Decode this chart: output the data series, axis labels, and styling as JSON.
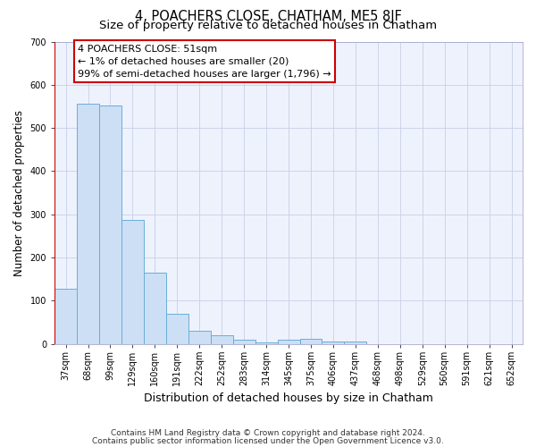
{
  "title": "4, POACHERS CLOSE, CHATHAM, ME5 8JF",
  "subtitle": "Size of property relative to detached houses in Chatham",
  "xlabel": "Distribution of detached houses by size in Chatham",
  "ylabel": "Number of detached properties",
  "categories": [
    "37sqm",
    "68sqm",
    "99sqm",
    "129sqm",
    "160sqm",
    "191sqm",
    "222sqm",
    "252sqm",
    "283sqm",
    "314sqm",
    "345sqm",
    "375sqm",
    "406sqm",
    "437sqm",
    "468sqm",
    "498sqm",
    "529sqm",
    "560sqm",
    "591sqm",
    "621sqm",
    "652sqm"
  ],
  "values": [
    128,
    557,
    553,
    287,
    165,
    70,
    30,
    20,
    10,
    4,
    9,
    11,
    5,
    5,
    0,
    0,
    0,
    0,
    0,
    0,
    0
  ],
  "bar_color": "#ccdff5",
  "bar_edge_color": "#6aaed6",
  "vline_color": "#cc0000",
  "vline_x": -0.5,
  "annotation_text": "4 POACHERS CLOSE: 51sqm\n← 1% of detached houses are smaller (20)\n99% of semi-detached houses are larger (1,796) →",
  "annotation_box_color": "#cc0000",
  "footnote_line1": "Contains HM Land Registry data © Crown copyright and database right 2024.",
  "footnote_line2": "Contains public sector information licensed under the Open Government Licence v3.0.",
  "ylim": [
    0,
    700
  ],
  "yticks": [
    0,
    100,
    200,
    300,
    400,
    500,
    600,
    700
  ],
  "plot_bg_color": "#eef2fc",
  "grid_color": "#c8cfe8",
  "title_fontsize": 10.5,
  "subtitle_fontsize": 9.5,
  "xlabel_fontsize": 9,
  "ylabel_fontsize": 8.5,
  "tick_fontsize": 7,
  "annotation_fontsize": 8,
  "footnote_fontsize": 6.5
}
